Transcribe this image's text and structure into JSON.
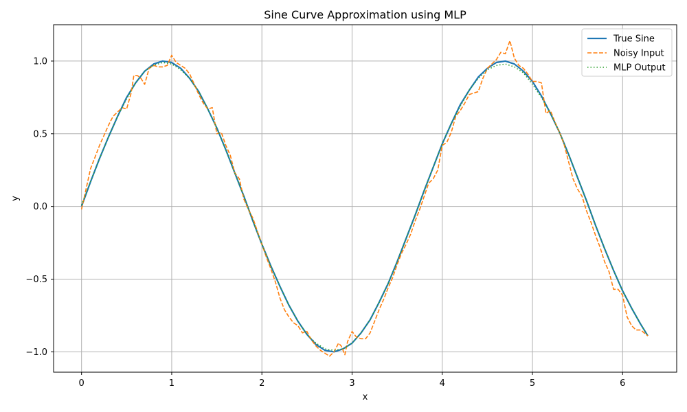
{
  "chart_data": {
    "type": "line",
    "title": "Sine Curve Approximation using MLP",
    "xlabel": "x",
    "ylabel": "y",
    "xlim": [
      -0.31,
      6.6
    ],
    "ylim": [
      -1.14,
      1.25
    ],
    "x_ticks": [
      0,
      1,
      2,
      3,
      4,
      5,
      6
    ],
    "x_tick_labels": [
      "0",
      "1",
      "2",
      "3",
      "4",
      "5",
      "6"
    ],
    "y_ticks": [
      -1.0,
      -0.5,
      0.0,
      0.5,
      1.0
    ],
    "y_tick_labels": [
      "−1.0",
      "−0.5",
      "0.0",
      "0.5",
      "1.0"
    ],
    "grid": true,
    "legend_position": "top-right",
    "series": [
      {
        "name": "True Sine",
        "color": "#1f77b4",
        "style": "solid",
        "x": [
          0,
          0.1,
          0.2,
          0.3,
          0.4,
          0.5,
          0.6,
          0.7,
          0.8,
          0.9,
          1.0,
          1.1,
          1.2,
          1.3,
          1.4,
          1.5,
          1.6,
          1.7,
          1.8,
          1.9,
          2.0,
          2.1,
          2.2,
          2.3,
          2.4,
          2.5,
          2.6,
          2.7,
          2.8,
          2.9,
          3.0,
          3.1,
          3.2,
          3.3,
          3.4,
          3.5,
          3.6,
          3.7,
          3.8,
          3.9,
          4.0,
          4.1,
          4.2,
          4.3,
          4.4,
          4.5,
          4.6,
          4.7,
          4.8,
          4.9,
          5.0,
          5.1,
          5.2,
          5.3,
          5.4,
          5.5,
          5.6,
          5.7,
          5.8,
          5.9,
          6.0,
          6.1,
          6.2,
          6.28
        ],
        "y": [
          0.0,
          0.17,
          0.33,
          0.48,
          0.62,
          0.75,
          0.85,
          0.93,
          0.98,
          1.0,
          0.99,
          0.95,
          0.88,
          0.79,
          0.67,
          0.54,
          0.39,
          0.23,
          0.07,
          -0.1,
          -0.26,
          -0.41,
          -0.55,
          -0.68,
          -0.79,
          -0.88,
          -0.95,
          -0.99,
          -1.0,
          -0.98,
          -0.94,
          -0.87,
          -0.78,
          -0.66,
          -0.53,
          -0.38,
          -0.22,
          -0.06,
          0.11,
          0.27,
          0.43,
          0.57,
          0.7,
          0.8,
          0.89,
          0.95,
          0.99,
          1.0,
          0.98,
          0.93,
          0.86,
          0.76,
          0.64,
          0.51,
          0.36,
          0.2,
          0.04,
          -0.13,
          -0.29,
          -0.44,
          -0.58,
          -0.7,
          -0.81,
          -0.89
        ]
      },
      {
        "name": "Noisy Input",
        "color": "#ff7f0e",
        "style": "dashed",
        "x": [
          0,
          0.05,
          0.1,
          0.15,
          0.2,
          0.25,
          0.3,
          0.35,
          0.4,
          0.45,
          0.5,
          0.55,
          0.58,
          0.62,
          0.66,
          0.7,
          0.75,
          0.8,
          0.85,
          0.9,
          0.95,
          1.0,
          1.05,
          1.1,
          1.15,
          1.2,
          1.25,
          1.3,
          1.35,
          1.4,
          1.45,
          1.5,
          1.55,
          1.6,
          1.65,
          1.7,
          1.75,
          1.8,
          1.85,
          1.9,
          1.95,
          2.0,
          2.05,
          2.1,
          2.15,
          2.2,
          2.25,
          2.3,
          2.35,
          2.4,
          2.45,
          2.5,
          2.55,
          2.6,
          2.65,
          2.7,
          2.75,
          2.8,
          2.85,
          2.88,
          2.92,
          2.95,
          3.0,
          3.05,
          3.1,
          3.15,
          3.2,
          3.25,
          3.3,
          3.35,
          3.4,
          3.45,
          3.5,
          3.55,
          3.6,
          3.65,
          3.7,
          3.75,
          3.8,
          3.85,
          3.9,
          3.95,
          4.0,
          4.05,
          4.1,
          4.15,
          4.2,
          4.25,
          4.3,
          4.35,
          4.4,
          4.45,
          4.5,
          4.55,
          4.6,
          4.65,
          4.7,
          4.75,
          4.8,
          4.85,
          4.9,
          4.95,
          5.0,
          5.05,
          5.1,
          5.15,
          5.2,
          5.25,
          5.3,
          5.35,
          5.4,
          5.45,
          5.5,
          5.55,
          5.6,
          5.65,
          5.7,
          5.75,
          5.8,
          5.85,
          5.9,
          5.95,
          6.0,
          6.05,
          6.1,
          6.15,
          6.2,
          6.28
        ],
        "y": [
          -0.02,
          0.12,
          0.26,
          0.34,
          0.42,
          0.49,
          0.56,
          0.62,
          0.65,
          0.68,
          0.67,
          0.78,
          0.9,
          0.9,
          0.88,
          0.84,
          0.95,
          0.97,
          0.96,
          0.96,
          0.97,
          1.04,
          0.99,
          0.97,
          0.95,
          0.91,
          0.84,
          0.77,
          0.71,
          0.67,
          0.68,
          0.5,
          0.51,
          0.42,
          0.35,
          0.23,
          0.19,
          0.05,
          -0.02,
          -0.08,
          -0.17,
          -0.26,
          -0.35,
          -0.43,
          -0.52,
          -0.63,
          -0.71,
          -0.76,
          -0.8,
          -0.82,
          -0.87,
          -0.86,
          -0.92,
          -0.96,
          -0.99,
          -1.01,
          -1.03,
          -1.0,
          -0.94,
          -0.96,
          -1.02,
          -0.93,
          -0.86,
          -0.9,
          -0.91,
          -0.91,
          -0.87,
          -0.79,
          -0.71,
          -0.64,
          -0.56,
          -0.49,
          -0.4,
          -0.32,
          -0.26,
          -0.19,
          -0.1,
          -0.02,
          0.07,
          0.16,
          0.19,
          0.25,
          0.42,
          0.44,
          0.51,
          0.62,
          0.66,
          0.71,
          0.77,
          0.78,
          0.79,
          0.88,
          0.95,
          0.98,
          1.01,
          1.06,
          1.05,
          1.14,
          1.02,
          0.97,
          0.95,
          0.91,
          0.86,
          0.86,
          0.85,
          0.64,
          0.66,
          0.58,
          0.51,
          0.43,
          0.31,
          0.19,
          0.12,
          0.07,
          -0.03,
          -0.11,
          -0.2,
          -0.28,
          -0.38,
          -0.45,
          -0.57,
          -0.57,
          -0.61,
          -0.76,
          -0.82,
          -0.85,
          -0.85,
          -0.89
        ]
      },
      {
        "name": "MLP Output",
        "color": "#2ca02c",
        "style": "dotted",
        "x": [
          0,
          0.1,
          0.2,
          0.3,
          0.4,
          0.5,
          0.6,
          0.7,
          0.8,
          0.9,
          1.0,
          1.1,
          1.2,
          1.3,
          1.4,
          1.5,
          1.6,
          1.7,
          1.8,
          1.9,
          2.0,
          2.1,
          2.2,
          2.3,
          2.4,
          2.5,
          2.6,
          2.7,
          2.8,
          2.9,
          3.0,
          3.1,
          3.2,
          3.3,
          3.4,
          3.5,
          3.6,
          3.7,
          3.8,
          3.9,
          4.0,
          4.1,
          4.2,
          4.3,
          4.4,
          4.5,
          4.6,
          4.7,
          4.8,
          4.9,
          5.0,
          5.1,
          5.2,
          5.3,
          5.4,
          5.5,
          5.6,
          5.7,
          5.8,
          5.9,
          6.0,
          6.1,
          6.2,
          6.28
        ],
        "y": [
          0.01,
          0.17,
          0.33,
          0.48,
          0.62,
          0.74,
          0.85,
          0.93,
          0.97,
          0.99,
          0.98,
          0.94,
          0.88,
          0.79,
          0.67,
          0.54,
          0.39,
          0.23,
          0.07,
          -0.1,
          -0.26,
          -0.41,
          -0.55,
          -0.68,
          -0.79,
          -0.88,
          -0.94,
          -0.98,
          -0.99,
          -0.98,
          -0.94,
          -0.87,
          -0.78,
          -0.66,
          -0.53,
          -0.38,
          -0.22,
          -0.06,
          0.11,
          0.27,
          0.43,
          0.57,
          0.69,
          0.8,
          0.88,
          0.94,
          0.97,
          0.98,
          0.96,
          0.92,
          0.84,
          0.75,
          0.64,
          0.51,
          0.36,
          0.2,
          0.04,
          -0.13,
          -0.29,
          -0.44,
          -0.58,
          -0.7,
          -0.81,
          -0.89
        ]
      }
    ]
  }
}
